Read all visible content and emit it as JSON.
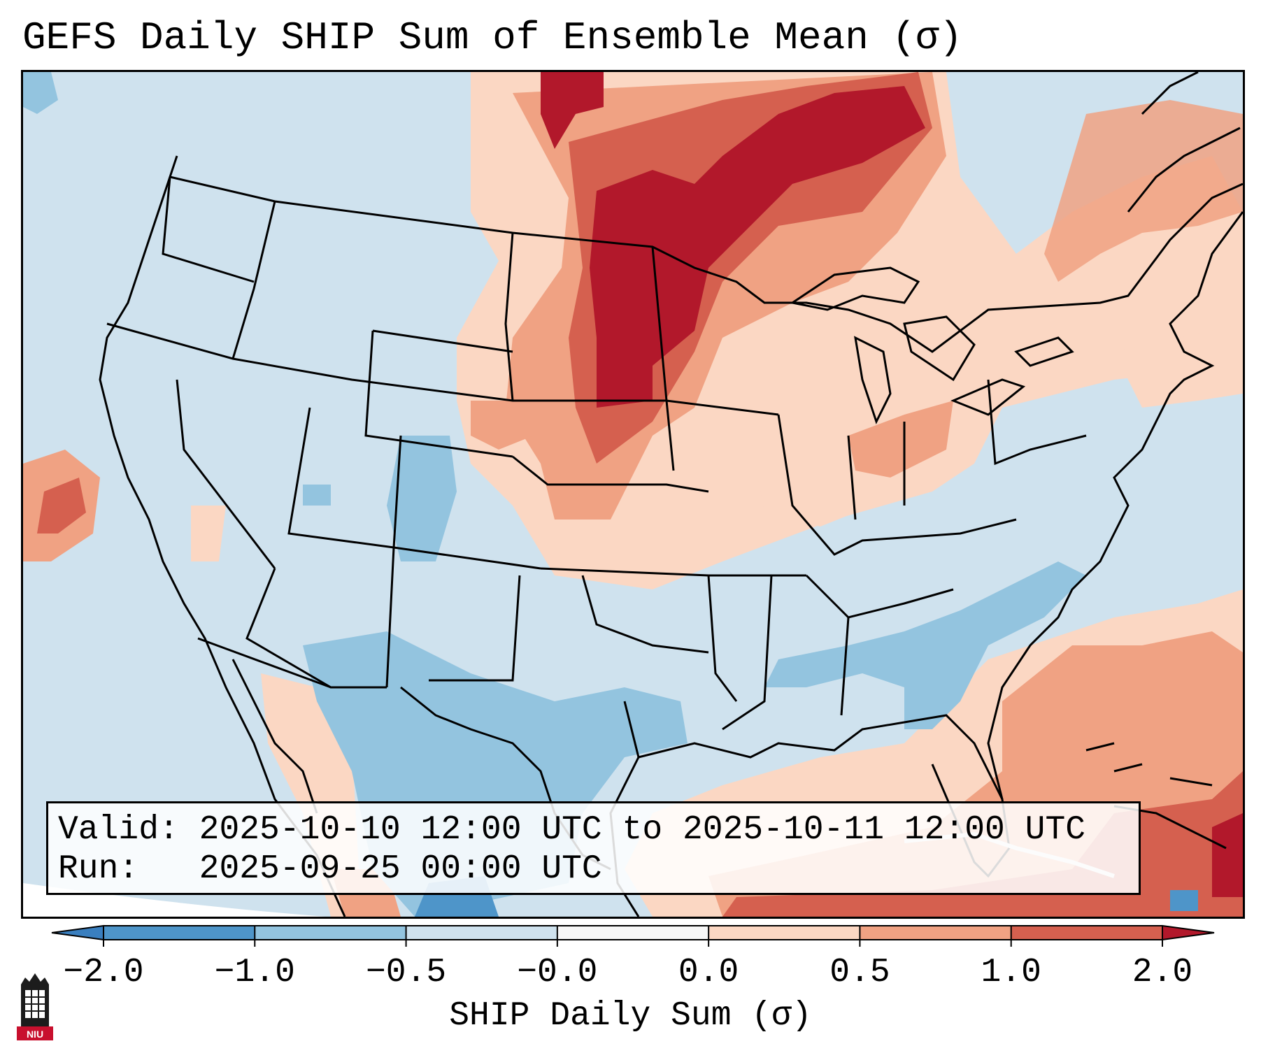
{
  "title": "GEFS Daily SHIP Sum of Ensemble Mean (σ)",
  "info": {
    "valid_label": "Valid:",
    "valid_value": "2025-10-10 12:00 UTC to 2025-10-11 12:00 UTC",
    "run_label": "Run:",
    "run_value": "2025-09-25 00:00 UTC"
  },
  "colorbar": {
    "label": "SHIP Daily Sum (σ)",
    "ticks": [
      "−2.0",
      "−1.0",
      "−0.5",
      "−0.0",
      "0.0",
      "0.5",
      "1.0",
      "2.0"
    ],
    "colors": {
      "below": "#3a7fbf",
      "bin_n2_n1": "#4e95c9",
      "bin_n1_n05": "#93c4df",
      "bin_n05_n0": "#cfe2ee",
      "bin_0_0": "#f7f7f7",
      "bin_0_05": "#fbd7c3",
      "bin_05_1": "#f0a283",
      "bin_1_2": "#d5604f",
      "above": "#b2182b"
    }
  },
  "logo": {
    "text": "NIU",
    "color": "#c8102e"
  }
}
